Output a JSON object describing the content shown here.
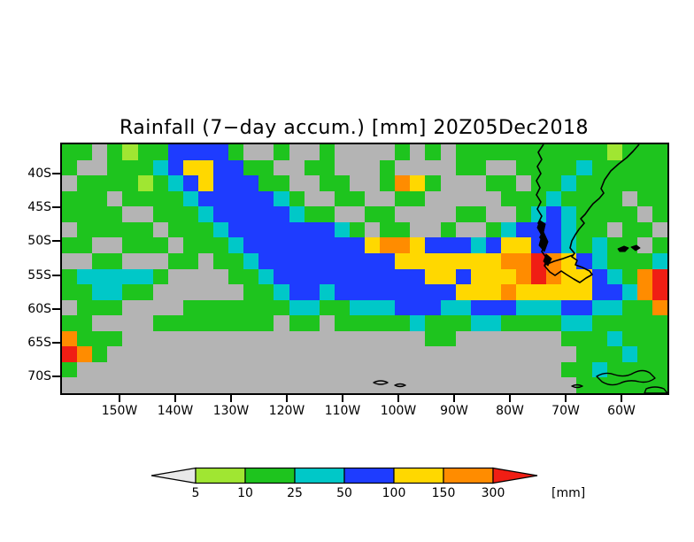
{
  "chart_data": {
    "type": "heatmap",
    "title": "Rainfall (7−day accum.) [mm] 20Z05Dec2018",
    "variable": "7-day accumulated rainfall",
    "unit": "mm",
    "valid_time": "20Z05Dec2018",
    "axes": {
      "lat_labels": [
        "40S",
        "45S",
        "50S",
        "55S",
        "60S",
        "65S",
        "70S"
      ],
      "lon_labels": [
        "150W",
        "140W",
        "130W",
        "120W",
        "110W",
        "100W",
        "90W",
        "80W",
        "70W",
        "60W"
      ]
    },
    "colorbar": {
      "unit_label": "[mm]",
      "tick_labels": [
        "5",
        "10",
        "25",
        "50",
        "100",
        "150",
        "300"
      ],
      "below_color": "#e8e8e8",
      "box_colors": [
        "#a0e632",
        "#1ec41e",
        "#00c8c8",
        "#1e3cff",
        "#ffd800",
        "#ff8c00"
      ],
      "above_color": "#f01e14"
    },
    "grid": {
      "ncols": 40,
      "nrows": 16,
      "west": "160W",
      "east": "52W",
      "north": "36S",
      "south": "72S",
      "palette": {
        ".": "#b4b4b4",
        "L": "#a0e632",
        "g": "#1ec41e",
        "c": "#00c8c8",
        "b": "#1e3cff",
        "y": "#ffd800",
        "o": "#ff8c00",
        "r": "#f01e14"
      },
      "legend_mm": {
        ".": "<5",
        "L": "5-10",
        "g": "10-25",
        "c": "25-50",
        "b": "50-100",
        "y": "100-150",
        "o": "150-300",
        "r": ">300"
      },
      "rows": [
        "gg.gLggbbbbg..g..g....g.g.ggggggggggLggg",
        "g..gggcbyybbgg..gg...g....gg..ggggcggggg",
        ".ggggLgcbybbbgg..gg..goyg...gg.ggcgggggg",
        "ggg.ggggcbbbbbcg..gg..gg.....gggcgggg.gg",
        "gggg..gggcbbbbbcgg..gg....gg..gcbcgggg.g",
        ".ggggg.gggcbbbbbbbcg.gg..g..gcbbbcgg.gg.",
        "gg..ggg.gggcbbbbbbbbyooybbbcbyybbcgcgg.g",
        "..gg...gg.ggcbbbbbbbbbyyyyyyyooroybcgggc",
        "gcccccg....ggcbbbbbbbbbbyybyyyoroyybcgor",
        "ggccgg......ggcbbcbbbbbbbbyyyoyyyyybbcor",
        ".ggg....gggggggccggcccbbbccbbbcccbbccggo",
        "gg....gggggggg.gg.gggggcgggccggggccggggg",
        "oggg....................gg.......gggcggg",
        "rog...............................gggcgg",
        "g................................ggcgggg",
        "..................................gggggg"
      ]
    }
  },
  "map": {
    "coast": [
      "M652,0 L645,8 638,15 629,22 620,30 613,40 609,50 612,55 607,61 600,67 596,72 591,79 586,84 590,89 584,96 580,102 576,109 574,117 579,123 576,127 582,131 580,136 588,139 596,143 599,147 592,151 585,156 578,152 570,147 564,143 557,148 551,144 545,137 548,129 542,121 546,113 540,105 544,97 538,89 542,81 537,73 541,65 536,57 540,49 536,41 541,33 537,25 542,17 538,9 544,0",
      "M546,136 L556,132 566,129 577,125"
    ],
    "land_fills": [
      "M540,86 L546,90 544,99 549,110 545,121 539,114 542,103 537,94 Z",
      "M547,124 L553,129 549,137 544,132 Z",
      "M628,118 L635,115 640,117 636,121 630,121 Z",
      "M643,116 L649,114 653,117 648,120 Z"
    ],
    "islands": [
      "M352,269 Q360,265 368,269 Q360,273 352,269 Z",
      "M376,272 Q382,269 388,272 Q382,275 376,272 Z",
      "M576,273 Q582,270 588,273 Q582,276 576,273 Z",
      "M604,262 Q614,256 624,260 Q636,264 646,258 Q656,253 664,258 L670,264 Q662,270 652,268 Q640,265 630,270 Q620,274 610,268 Z",
      "M660,276 Q670,272 680,276 L684,281 L658,281 Z"
    ]
  }
}
